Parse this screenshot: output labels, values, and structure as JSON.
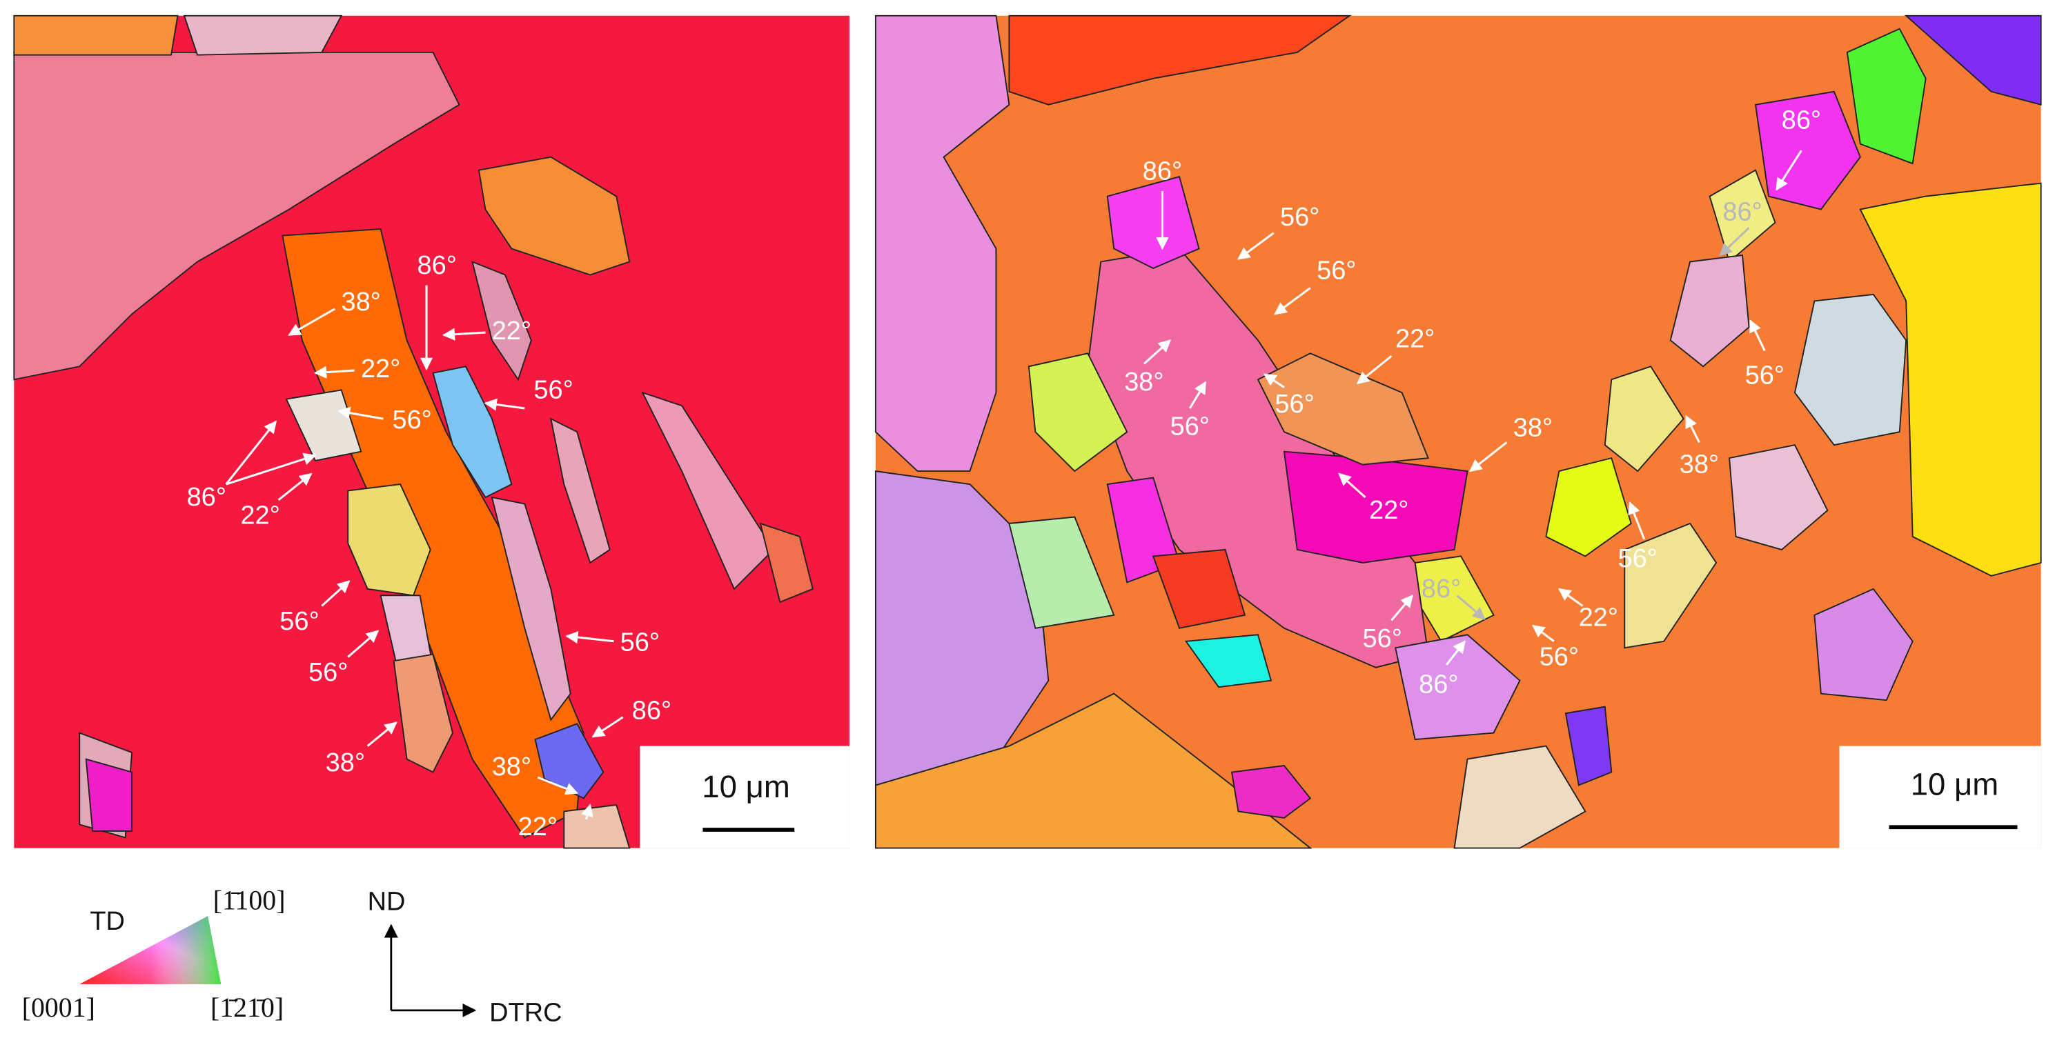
{
  "panels": [
    {
      "labels": [
        "38°",
        "86°",
        "22°",
        "22°",
        "56°",
        "56°",
        "86°",
        "22°",
        "56°",
        "56°",
        "56°",
        "86°",
        "38°",
        "38°",
        "22°"
      ],
      "scale_bar": "10 μm"
    },
    {
      "labels": [
        "86°",
        "56°",
        "56°",
        "22°",
        "38°",
        "56°",
        "56°",
        "38°",
        "22°",
        "86°",
        "86°",
        "56°",
        "38°",
        "56°",
        "22°",
        "86°",
        "56°",
        "56°",
        "86°"
      ],
      "scale_bar": "10 μm"
    }
  ],
  "legend": {
    "td": "TD",
    "corner_top": "[1̄100]",
    "corner_left": "[0001]",
    "corner_right": "[1̄21̄0]"
  },
  "axes": {
    "vertical": "ND",
    "horizontal": "DTRC"
  }
}
